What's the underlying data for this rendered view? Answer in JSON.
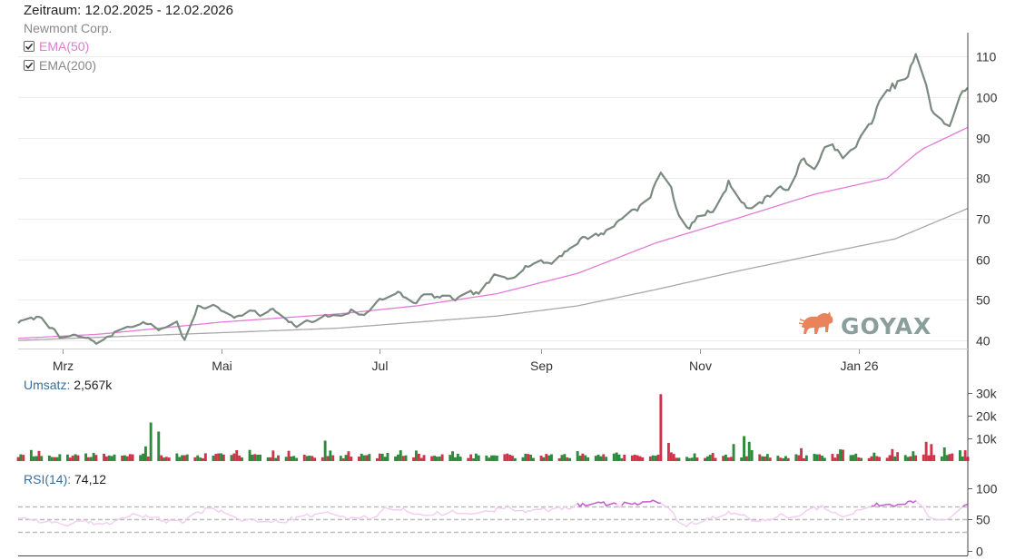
{
  "header": {
    "period": "Zeitraum: 12.02.2025 - 12.02.2026",
    "company": "Newmont Corp."
  },
  "legend": [
    {
      "label": "EMA(50)",
      "checked": true,
      "color": "#e07ad0"
    },
    {
      "label": "EMA(200)",
      "checked": true,
      "color": "#999999"
    }
  ],
  "watermark": {
    "text": "GOYAX",
    "color": "#e8835c"
  },
  "colors": {
    "price": "#7b8a7e",
    "ema50": "#e47bd6",
    "ema200": "#a8a8a8",
    "vol_up": "#2e8b3e",
    "vol_down": "#d0344a",
    "rsi_line": "#c55ecf",
    "rsi_ref": "#bbbbbb"
  },
  "chart_data": [
    {
      "type": "line",
      "title": "",
      "series_name": "Newmont Corp.",
      "x_ticks": [
        "Mrz",
        "Mai",
        "Jul",
        "Sep",
        "Nov",
        "Jan 26"
      ],
      "y_ticks": [
        40,
        50,
        60,
        70,
        80,
        90,
        100,
        110
      ],
      "ylim": [
        38,
        112
      ],
      "grid": true,
      "price_keypoints": [
        [
          "2025-02-12",
          44.5
        ],
        [
          "2025-02-17",
          45
        ],
        [
          "2025-02-21",
          46
        ],
        [
          "2025-02-25",
          43
        ],
        [
          "2025-02-28",
          40.5
        ],
        [
          "2025-03-05",
          41
        ],
        [
          "2025-03-10",
          40.5
        ],
        [
          "2025-03-14",
          39.5
        ],
        [
          "2025-03-18",
          40.5
        ],
        [
          "2025-03-24",
          43
        ],
        [
          "2025-03-28",
          44
        ],
        [
          "2025-04-02",
          44.5
        ],
        [
          "2025-04-07",
          42.5
        ],
        [
          "2025-04-10",
          43.5
        ],
        [
          "2025-04-14",
          44.5
        ],
        [
          "2025-04-17",
          40
        ],
        [
          "2025-04-22",
          48
        ],
        [
          "2025-04-28",
          48.5
        ],
        [
          "2025-05-03",
          47
        ],
        [
          "2025-05-08",
          46
        ],
        [
          "2025-05-12",
          47.5
        ],
        [
          "2025-05-16",
          46
        ],
        [
          "2025-05-21",
          47.5
        ],
        [
          "2025-05-26",
          44.5
        ],
        [
          "2025-05-30",
          43.5
        ],
        [
          "2025-06-05",
          45
        ],
        [
          "2025-06-10",
          46
        ],
        [
          "2025-06-16",
          46
        ],
        [
          "2025-06-20",
          47.5
        ],
        [
          "2025-06-25",
          46
        ],
        [
          "2025-07-01",
          50.5
        ],
        [
          "2025-07-08",
          51.5
        ],
        [
          "2025-07-14",
          49
        ],
        [
          "2025-07-18",
          51
        ],
        [
          "2025-07-24",
          50.5
        ],
        [
          "2025-07-30",
          50
        ],
        [
          "2025-08-04",
          51
        ],
        [
          "2025-08-08",
          51.5
        ],
        [
          "2025-08-14",
          55.5
        ],
        [
          "2025-08-19",
          55
        ],
        [
          "2025-08-25",
          58.5
        ],
        [
          "2025-08-30",
          59.5
        ],
        [
          "2025-09-05",
          59
        ],
        [
          "2025-09-10",
          62
        ],
        [
          "2025-09-16",
          65
        ],
        [
          "2025-09-22",
          66
        ],
        [
          "2025-09-28",
          67.5
        ],
        [
          "2025-10-03",
          71
        ],
        [
          "2025-10-08",
          73
        ],
        [
          "2025-10-13",
          75
        ],
        [
          "2025-10-17",
          82
        ],
        [
          "2025-10-21",
          77
        ],
        [
          "2025-10-24",
          71
        ],
        [
          "2025-10-28",
          68
        ],
        [
          "2025-11-02",
          71
        ],
        [
          "2025-11-07",
          72
        ],
        [
          "2025-11-12",
          79
        ],
        [
          "2025-11-16",
          76
        ],
        [
          "2025-11-21",
          72
        ],
        [
          "2025-11-26",
          75
        ],
        [
          "2025-12-01",
          78
        ],
        [
          "2025-12-06",
          77
        ],
        [
          "2025-12-11",
          85
        ],
        [
          "2025-12-16",
          83
        ],
        [
          "2025-12-20",
          88
        ],
        [
          "2025-12-26",
          86
        ],
        [
          "2025-12-30",
          87
        ],
        [
          "2026-01-04",
          91
        ],
        [
          "2026-01-08",
          97
        ],
        [
          "2026-01-14",
          102
        ],
        [
          "2026-01-20",
          105
        ],
        [
          "2026-01-23",
          110
        ],
        [
          "2026-01-26",
          104
        ],
        [
          "2026-01-29",
          97
        ],
        [
          "2026-02-02",
          95
        ],
        [
          "2026-02-05",
          92
        ],
        [
          "2026-02-09",
          101
        ],
        [
          "2026-02-12",
          102
        ]
      ],
      "ema50_keypoints": [
        [
          "2025-02-12",
          40.5
        ],
        [
          "2025-03-15",
          41.5
        ],
        [
          "2025-05-01",
          44.5
        ],
        [
          "2025-06-15",
          46.5
        ],
        [
          "2025-07-15",
          48.5
        ],
        [
          "2025-08-15",
          51.5
        ],
        [
          "2025-09-15",
          56.5
        ],
        [
          "2025-10-15",
          64
        ],
        [
          "2025-11-15",
          70
        ],
        [
          "2025-12-15",
          76
        ],
        [
          "2026-01-12",
          80
        ],
        [
          "2026-01-25",
          87
        ],
        [
          "2026-02-12",
          92.5
        ]
      ],
      "ema200_keypoints": [
        [
          "2025-02-12",
          40
        ],
        [
          "2025-04-15",
          41.5
        ],
        [
          "2025-06-15",
          43
        ],
        [
          "2025-08-15",
          46
        ],
        [
          "2025-09-15",
          48.5
        ],
        [
          "2025-10-15",
          52.5
        ],
        [
          "2025-11-15",
          57
        ],
        [
          "2025-12-15",
          61
        ],
        [
          "2026-01-15",
          65
        ],
        [
          "2026-02-12",
          72.5
        ]
      ]
    },
    {
      "type": "bar",
      "title": "",
      "label": "Umsatz:",
      "value": "2,567k",
      "y_ticks": [
        "10k",
        "20k",
        "30k"
      ],
      "y_tick_values": [
        10000,
        20000,
        30000
      ],
      "ylim": [
        0,
        31000
      ],
      "spikes": [
        [
          "2025-04-02",
          6500,
          "up"
        ],
        [
          "2025-04-04",
          17000,
          "up"
        ],
        [
          "2025-04-07",
          13000,
          "up"
        ],
        [
          "2025-06-10",
          9000,
          "up"
        ],
        [
          "2025-10-17",
          29500,
          "down"
        ],
        [
          "2025-10-20",
          8000,
          "down"
        ],
        [
          "2025-11-14",
          7500,
          "up"
        ],
        [
          "2025-11-18",
          11000,
          "up"
        ],
        [
          "2025-11-20",
          8500,
          "up"
        ],
        [
          "2026-01-27",
          8500,
          "down"
        ],
        [
          "2026-01-29",
          7500,
          "down"
        ],
        [
          "2026-02-03",
          6000,
          "up"
        ]
      ]
    },
    {
      "type": "line",
      "title": "",
      "label": "RSI(14):",
      "value": "74,12",
      "y_ticks": [
        0,
        50,
        100
      ],
      "ylim": [
        0,
        100
      ],
      "reference_lines": [
        30,
        50,
        70
      ],
      "rsi_keypoints": [
        [
          "2025-02-12",
          55
        ],
        [
          "2025-02-26",
          45
        ],
        [
          "2025-03-15",
          40
        ],
        [
          "2025-03-28",
          58
        ],
        [
          "2025-04-15",
          42
        ],
        [
          "2025-04-25",
          66
        ],
        [
          "2025-05-20",
          44
        ],
        [
          "2025-06-10",
          58
        ],
        [
          "2025-06-28",
          52
        ],
        [
          "2025-07-05",
          68
        ],
        [
          "2025-07-20",
          58
        ],
        [
          "2025-08-10",
          60
        ],
        [
          "2025-08-20",
          72
        ],
        [
          "2025-09-01",
          62
        ],
        [
          "2025-09-15",
          74
        ],
        [
          "2025-10-01",
          72
        ],
        [
          "2025-10-17",
          80
        ],
        [
          "2025-10-25",
          42
        ],
        [
          "2025-11-05",
          52
        ],
        [
          "2025-11-13",
          60
        ],
        [
          "2025-11-22",
          45
        ],
        [
          "2025-12-05",
          58
        ],
        [
          "2025-12-14",
          70
        ],
        [
          "2025-12-28",
          60
        ],
        [
          "2026-01-08",
          72
        ],
        [
          "2026-01-23",
          80
        ],
        [
          "2026-01-31",
          45
        ],
        [
          "2026-02-12",
          74
        ]
      ]
    }
  ]
}
